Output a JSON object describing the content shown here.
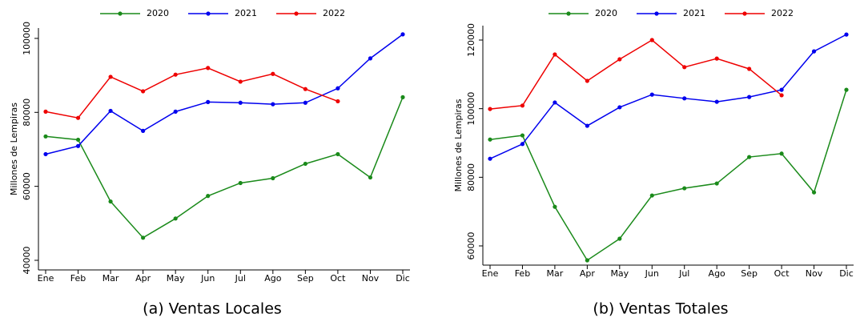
{
  "chart_data": [
    {
      "type": "line",
      "caption": "(a) Ventas Locales",
      "ylabel": "Millones de Lempiras",
      "categories": [
        "Ene",
        "Feb",
        "Mar",
        "Apr",
        "May",
        "Jun",
        "Jul",
        "Ago",
        "Sep",
        "Oct",
        "Nov",
        "Dic"
      ],
      "ylim": [
        37400,
        102800
      ],
      "yticks": [
        40000,
        60000,
        80000,
        100000
      ],
      "series": [
        {
          "name": "2020",
          "color": "#1a8a1a",
          "values": [
            73500,
            72600,
            55900,
            46100,
            51300,
            57400,
            60900,
            62200,
            66100,
            68700,
            62400,
            84100
          ]
        },
        {
          "name": "2021",
          "color": "#0000ee",
          "values": [
            68700,
            70900,
            80400,
            75000,
            80200,
            82800,
            82600,
            82200,
            82600,
            86500,
            94600,
            101100
          ]
        },
        {
          "name": "2022",
          "color": "#ee0000",
          "values": [
            80200,
            78500,
            89600,
            85700,
            90200,
            92000,
            88300,
            90400,
            86300,
            83000,
            null,
            null
          ]
        }
      ]
    },
    {
      "type": "line",
      "caption": "(b) Ventas Totales",
      "ylabel": "Millones de Lempiras",
      "categories": [
        "Ene",
        "Feb",
        "Mar",
        "Apr",
        "May",
        "Jun",
        "Jul",
        "Ago",
        "Sep",
        "Oct",
        "Nov",
        "Dic"
      ],
      "ylim": [
        54400,
        124200
      ],
      "yticks": [
        60000,
        80000,
        100000,
        120000
      ],
      "series": [
        {
          "name": "2020",
          "color": "#1a8a1a",
          "values": [
            91000,
            92200,
            71400,
            55800,
            62100,
            74700,
            76800,
            78200,
            85900,
            86900,
            75600,
            105500
          ]
        },
        {
          "name": "2021",
          "color": "#0000ee",
          "values": [
            85400,
            89700,
            101800,
            95000,
            100400,
            104100,
            103000,
            102000,
            103400,
            105500,
            116700,
            121600
          ]
        },
        {
          "name": "2022",
          "color": "#ee0000",
          "values": [
            99900,
            100900,
            115800,
            108100,
            114400,
            120000,
            112100,
            114600,
            111600,
            103900,
            null,
            null
          ]
        }
      ]
    }
  ]
}
